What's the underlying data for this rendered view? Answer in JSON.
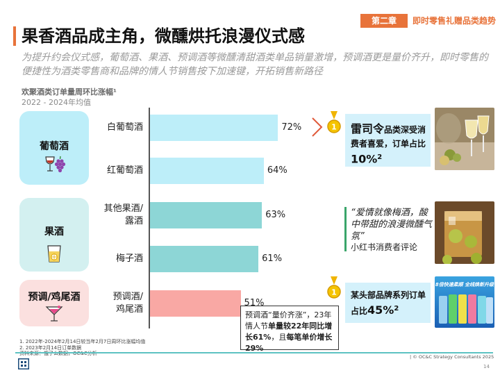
{
  "header": {
    "chapter_tag": "第二章",
    "chapter_title": "即时零售礼赠品类趋势"
  },
  "title": "果香酒品成主角，微醺烘托浪漫仪式感",
  "subtitle": "为提升约会仪式感，葡萄酒、果酒、预调酒等微醺清甜酒类单品销量激增，预调酒更是量价齐升，即时零售的便捷性为酒类零售商和品牌的情人节销售按下加速键，开拓销售新路径",
  "chart_data": {
    "type": "bar",
    "orientation": "horizontal",
    "title": "欢聚酒类订单量周环比涨幅¹",
    "subtitle": "2022 - 2024年均值",
    "groups": [
      {
        "name": "葡萄酒",
        "color": "#bdeef9",
        "bar_color": "#bdeef9",
        "items": [
          {
            "label": "白葡萄酒",
            "value": 72,
            "display": "72%"
          },
          {
            "label": "红葡萄酒",
            "value": 64,
            "display": "64%"
          }
        ]
      },
      {
        "name": "果酒",
        "color": "#d3f0f0",
        "bar_color": "#8dd6d6",
        "items": [
          {
            "label": "其他果酒/\n露酒",
            "value": 63,
            "display": "63%"
          },
          {
            "label": "梅子酒",
            "value": 61,
            "display": "61%"
          }
        ]
      },
      {
        "name": "预调/鸡尾酒",
        "color": "#fbe0df",
        "bar_color": "#f9a8a4",
        "items": [
          {
            "label": "预调酒/\n鸡尾酒",
            "value": 51,
            "display": "51%"
          }
        ]
      }
    ],
    "xlim": [
      0,
      100
    ]
  },
  "callouts": {
    "wine_brand": "雷司令",
    "wine_text": "品类深受消费者喜爱，订单占比",
    "wine_pct": "10%",
    "wine_sup": "2",
    "quote": "“爱情就像梅酒，酸中带甜的浪漫微醺气氛”",
    "quote_source": "小红书消费者评论",
    "rtd_text": "某头部品牌系列订单占比",
    "rtd_pct": "45%",
    "rtd_sup": "2",
    "rtd_can_text": "8倍快速柔顺 全线焕新升级"
  },
  "note": {
    "text_1": "预调酒“量价齐涨”，23年情人节",
    "bold_1": "单量较22年同比增长61%",
    "text_2": "，且",
    "bold_2": "每笔单价增长29%"
  },
  "footnotes": {
    "line1": "1. 2022年-2024年2月14日较当年2月7日周环比涨幅均值",
    "line2": "2. 2023年2月14日订单数据",
    "line3": "资料来源：饿了么数据，OC&C分析"
  },
  "footer": {
    "copyright": "| © OC&C Strategy Consultants 2025",
    "page": "14"
  },
  "colors": {
    "accent": "#e8733a",
    "teal": "#5cc2c2",
    "callout_bg": "#d4f1fb",
    "quote_bar": "#3aa56a"
  }
}
